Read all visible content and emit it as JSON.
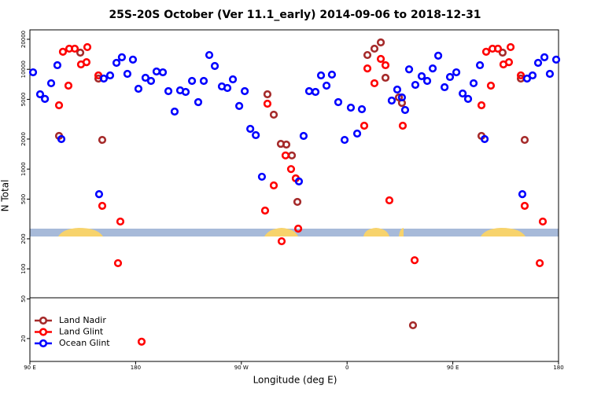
{
  "chart_data": {
    "type": "scatter",
    "title": "25S-20S October (Ver 11.1_early)   2014-09-06 to 2018-12-31",
    "xlabel": "Longitude (deg E)",
    "ylabel": "N Total",
    "log_y": true,
    "legend": "lower left",
    "xlim": [
      90,
      540
    ],
    "xticks": [
      {
        "value": 90,
        "label": "90 E"
      },
      {
        "value": 180,
        "label": "180"
      },
      {
        "value": 270,
        "label": "90 W"
      },
      {
        "value": 360,
        "label": "0"
      },
      {
        "value": 450,
        "label": "90 E"
      },
      {
        "value": 540,
        "label": "180"
      }
    ],
    "ylim": [
      11.8,
      24860
    ],
    "yticks": [
      20,
      50,
      100,
      200,
      500,
      1000,
      2000,
      5000,
      10000,
      20000
    ],
    "series": [
      {
        "name": "Land Nadir",
        "color": "#a52a2a",
        "x": [
          114.8,
          132.9,
          148.3,
          151.6,
          292.2,
          297.6,
          303.6,
          308.3,
          313.0,
          317.7,
          377.3,
          383.3,
          388.7,
          392.7,
          404.1,
          406.7,
          416.1,
          474.4,
          492.4,
          507.9,
          511.2
        ],
        "values": [
          2150,
          14700,
          8080,
          1960,
          5620,
          3510,
          1790,
          1760,
          1370,
          469,
          13900,
          16100,
          18600,
          8230,
          5230,
          4600,
          27.2,
          2150,
          14700,
          8080,
          1960
        ]
      },
      {
        "name": "Land Glint",
        "color": "#ff0000",
        "x": [
          114.8,
          118.1,
          122.8,
          123.5,
          128.2,
          133.5,
          138.2,
          138.9,
          148.3,
          151.6,
          165.0,
          167.0,
          185.1,
          290.2,
          292.2,
          297.6,
          304.3,
          307.6,
          312.3,
          316.3,
          318.4,
          374.6,
          377.3,
          383.3,
          388.7,
          392.7,
          396.0,
          407.4,
          417.5,
          474.4,
          478.4,
          482.4,
          483.8,
          488.4,
          493.1,
          497.8,
          499.2,
          507.9,
          511.2,
          524.0,
          526.6
        ],
        "values": [
          4360,
          15000,
          6860,
          16100,
          16100,
          11200,
          11800,
          16700,
          8690,
          428,
          114,
          298,
          18.6,
          384,
          4520,
          686,
          189,
          1370,
          1000,
          807,
          253,
          2720,
          10200,
          7250,
          12700,
          11000,
          486,
          2720,
          122,
          4360,
          15000,
          6860,
          16100,
          16100,
          11200,
          11800,
          16700,
          8690,
          428,
          114,
          298
        ]
      },
      {
        "name": "Ocean Glint",
        "color": "#0000ff",
        "x": [
          92.7,
          98.7,
          102.8,
          108.1,
          113.4,
          116.8,
          148.9,
          152.9,
          158.3,
          163.7,
          168.3,
          173.0,
          177.7,
          182.4,
          188.4,
          193.1,
          197.8,
          203.2,
          207.9,
          213.2,
          217.9,
          222.6,
          228.0,
          233.3,
          238.0,
          242.7,
          247.4,
          253.4,
          258.1,
          262.8,
          268.2,
          272.9,
          277.6,
          282.3,
          287.5,
          319.0,
          323.0,
          327.7,
          333.1,
          337.8,
          342.5,
          347.1,
          352.5,
          357.9,
          363.2,
          368.6,
          372.6,
          398.0,
          402.7,
          406.7,
          409.4,
          412.8,
          418.1,
          423.5,
          428.2,
          432.9,
          437.6,
          443.0,
          447.6,
          453.0,
          458.4,
          463.0,
          467.7,
          473.1,
          477.1,
          509.2,
          513.2,
          517.9,
          522.6,
          528.0,
          532.6,
          538.0
        ],
        "values": [
          9330,
          5620,
          5050,
          7250,
          11000,
          2000,
          560,
          8080,
          8690,
          11600,
          13200,
          9010,
          12500,
          6380,
          8230,
          7650,
          9510,
          9330,
          6040,
          3770,
          6150,
          5930,
          7650,
          4690,
          7650,
          13900,
          10800,
          6740,
          6500,
          7930,
          4290,
          6040,
          2530,
          2190,
          838,
          752,
          2150,
          6040,
          5930,
          8690,
          6860,
          8850,
          4690,
          1960,
          4130,
          2270,
          3980,
          4860,
          6270,
          5230,
          3910,
          10000,
          6980,
          8530,
          7650,
          10200,
          13700,
          6620,
          8380,
          9330,
          5720,
          5050,
          7250,
          11000,
          2000,
          560,
          8080,
          8690,
          11600,
          13200,
          9010,
          12500
        ]
      }
    ]
  }
}
